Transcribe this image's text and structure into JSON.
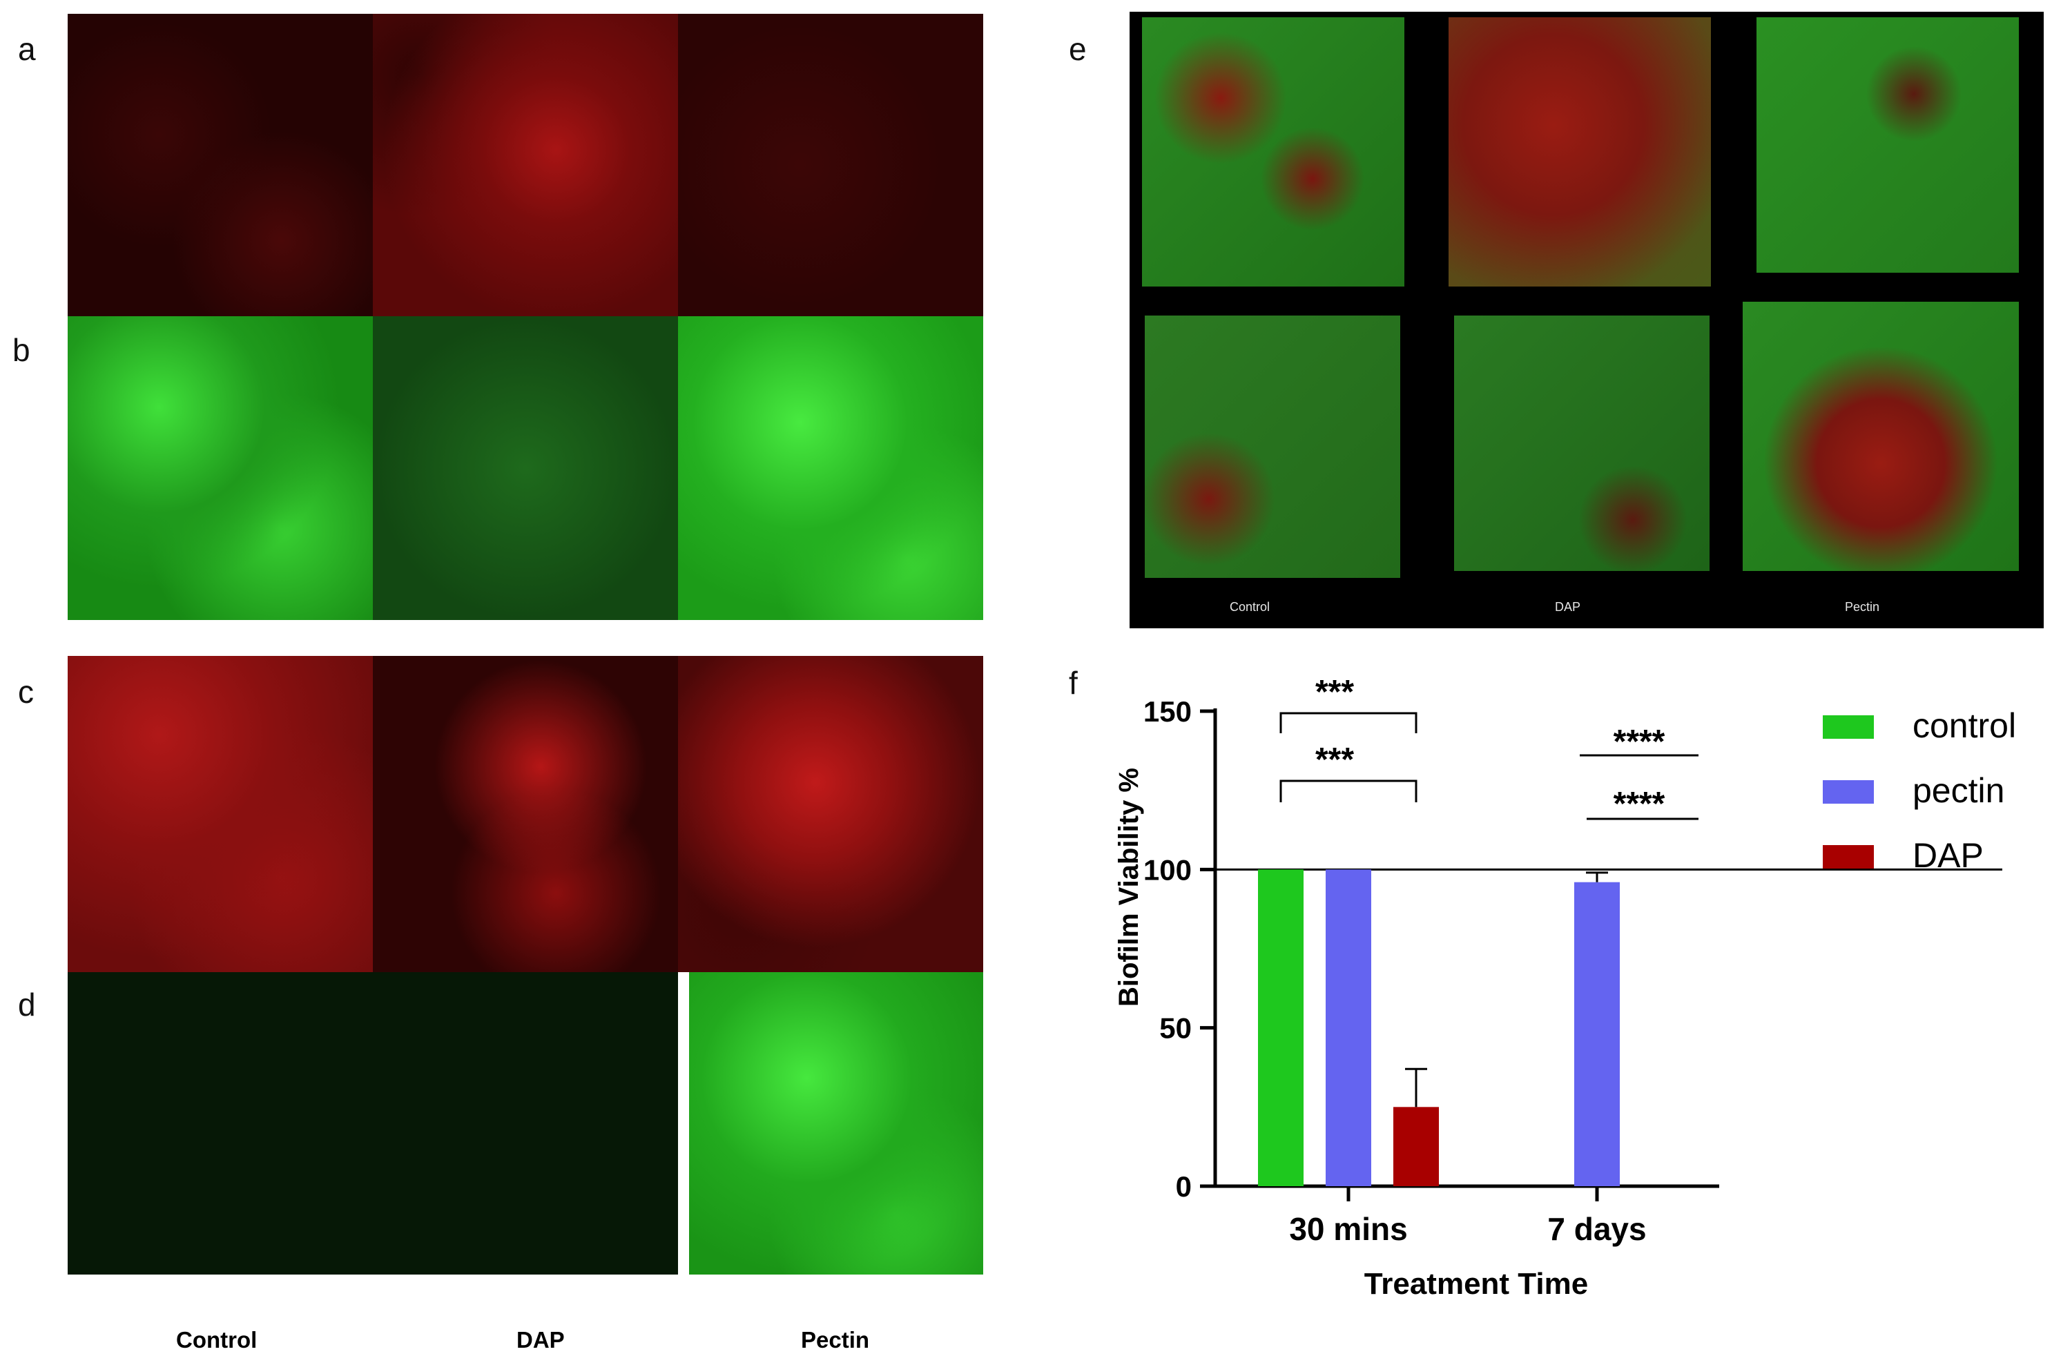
{
  "panel_labels": [
    "a",
    "b",
    "c",
    "d",
    "e",
    "f"
  ],
  "column_labels": [
    "Control",
    "DAP",
    "Pectin"
  ],
  "e_labels": [
    "Control",
    "DAP",
    "Pectin"
  ],
  "colors": {
    "red_stain": "#b01010",
    "green_stain": "#22c81e",
    "control": "#1ec81e",
    "pectin": "#6464f0",
    "dap": "#a80000"
  },
  "chart_data": {
    "type": "bar",
    "categories": [
      "30 mins",
      "7 days"
    ],
    "series": [
      {
        "name": "control",
        "values": [
          100,
          null
        ],
        "color": "#1ec81e"
      },
      {
        "name": "pectin",
        "values": [
          100,
          96
        ],
        "error": [
          0,
          3
        ],
        "color": "#6464f0"
      },
      {
        "name": "DAP",
        "values": [
          25,
          null
        ],
        "error": [
          12,
          null
        ],
        "color": "#a80000"
      }
    ],
    "xlabel": "Treatment Time",
    "ylabel": "Biofilm Viability %",
    "ylim": [
      0,
      150
    ],
    "yticks": [
      0,
      50,
      100,
      150
    ],
    "reference_line": 100,
    "legend_position": "right",
    "significance": [
      {
        "label": "***",
        "category": "30 mins"
      },
      {
        "label": "***",
        "category": "30 mins"
      },
      {
        "label": "****",
        "category": "7 days"
      },
      {
        "label": "****",
        "category": "7 days"
      }
    ]
  }
}
